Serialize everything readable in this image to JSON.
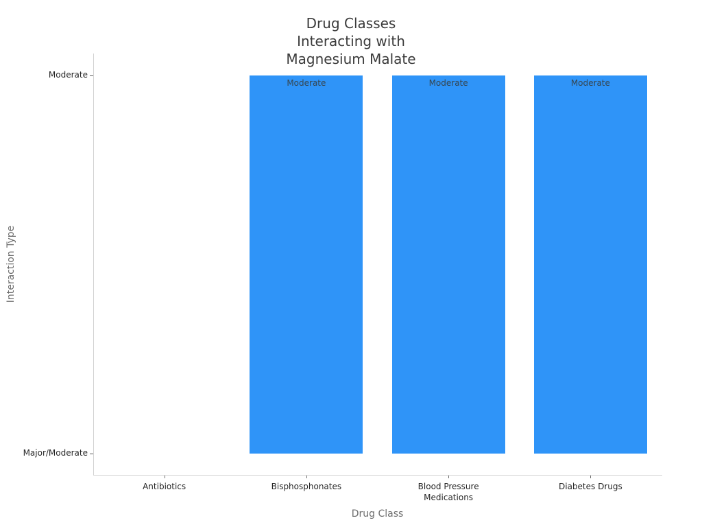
{
  "title": "Drug Classes\nInteracting with\nMagnesium Malate",
  "axes": {
    "x_label": "Drug Class",
    "y_label": "Interaction Type"
  },
  "colors": {
    "bar_fill": "#2F94F8",
    "bar_label_text": "#36454E",
    "title_text": "#3a3a3a",
    "tick_label_text": "#262626",
    "axis_label_text": "#6d6d6d",
    "spine": "#d2d2d2"
  },
  "chart_data": {
    "type": "bar",
    "title": "Drug Classes Interacting with Magnesium Malate",
    "xlabel": "Drug Class",
    "ylabel": "Interaction Type",
    "categories": [
      "Antibiotics",
      "Bisphosphonates",
      "Blood Pressure Medications",
      "Diabetes Drugs"
    ],
    "values": [
      "Major/Moderate",
      "Moderate",
      "Moderate",
      "Moderate"
    ],
    "bar_labels": [
      "",
      "Moderate",
      "Moderate",
      "Moderate"
    ],
    "y_tick_labels": [
      "Major/Moderate",
      "Moderate"
    ],
    "baseline_level": "Major/Moderate",
    "bar_color": "#2F94F8",
    "grid": false,
    "legend_position": "none",
    "orientation": "vertical"
  }
}
